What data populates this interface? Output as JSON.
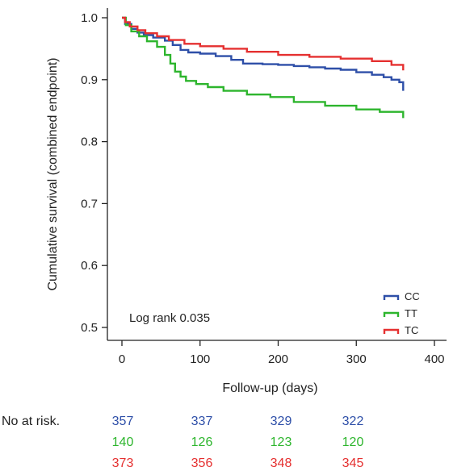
{
  "chart_data": {
    "type": "line",
    "subtype": "kaplan-meier step",
    "title": "",
    "xlabel": "Follow-up (days)",
    "ylabel": "Cumulative survival (combined endpoint)",
    "xlim": [
      0,
      400
    ],
    "ylim": [
      0.5,
      1.0
    ],
    "xticks": [
      0,
      100,
      200,
      300,
      400
    ],
    "yticks": [
      0.5,
      0.6,
      0.7,
      0.8,
      0.9,
      1.0
    ],
    "xtick_labels": [
      "0",
      "100",
      "200",
      "300",
      "400"
    ],
    "ytick_labels": [
      "0.5",
      "0.6",
      "0.7",
      "0.8",
      "0.9",
      "1.0"
    ],
    "grid": false,
    "legend_position": "bottom-right",
    "annotation": "Log rank 0.035",
    "series": [
      {
        "name": "CC",
        "color": "#2e4fa8",
        "x": [
          0,
          4,
          12,
          20,
          28,
          40,
          55,
          65,
          75,
          85,
          100,
          120,
          140,
          155,
          180,
          200,
          220,
          240,
          260,
          280,
          300,
          320,
          335,
          345,
          355,
          360
        ],
        "y": [
          1.0,
          0.99,
          0.982,
          0.976,
          0.972,
          0.968,
          0.963,
          0.956,
          0.948,
          0.944,
          0.942,
          0.938,
          0.932,
          0.926,
          0.925,
          0.924,
          0.922,
          0.92,
          0.918,
          0.916,
          0.912,
          0.908,
          0.904,
          0.9,
          0.896,
          0.882
        ]
      },
      {
        "name": "TT",
        "color": "#2db52d",
        "x": [
          0,
          5,
          12,
          22,
          32,
          45,
          55,
          62,
          68,
          75,
          82,
          95,
          110,
          130,
          160,
          190,
          220,
          260,
          300,
          330,
          360
        ],
        "y": [
          1.0,
          0.988,
          0.978,
          0.97,
          0.962,
          0.953,
          0.94,
          0.926,
          0.913,
          0.905,
          0.898,
          0.893,
          0.888,
          0.882,
          0.876,
          0.872,
          0.864,
          0.858,
          0.852,
          0.848,
          0.838
        ]
      },
      {
        "name": "TC",
        "color": "#e53030",
        "x": [
          0,
          4,
          10,
          20,
          30,
          45,
          60,
          80,
          100,
          130,
          160,
          200,
          240,
          280,
          320,
          345,
          360
        ],
        "y": [
          1.0,
          0.993,
          0.986,
          0.98,
          0.975,
          0.97,
          0.964,
          0.958,
          0.954,
          0.95,
          0.945,
          0.94,
          0.937,
          0.934,
          0.93,
          0.924,
          0.915
        ]
      }
    ],
    "risk_table": {
      "label": "No at risk.",
      "timepoints": [
        0,
        100,
        200,
        300
      ],
      "rows": [
        {
          "name": "CC",
          "color": "#2e4fa8",
          "values": [
            "357",
            "337",
            "329",
            "322"
          ]
        },
        {
          "name": "TT",
          "color": "#2db52d",
          "values": [
            "140",
            "126",
            "123",
            "120"
          ]
        },
        {
          "name": "TC",
          "color": "#e53030",
          "values": [
            "373",
            "356",
            "348",
            "345"
          ]
        }
      ]
    }
  }
}
